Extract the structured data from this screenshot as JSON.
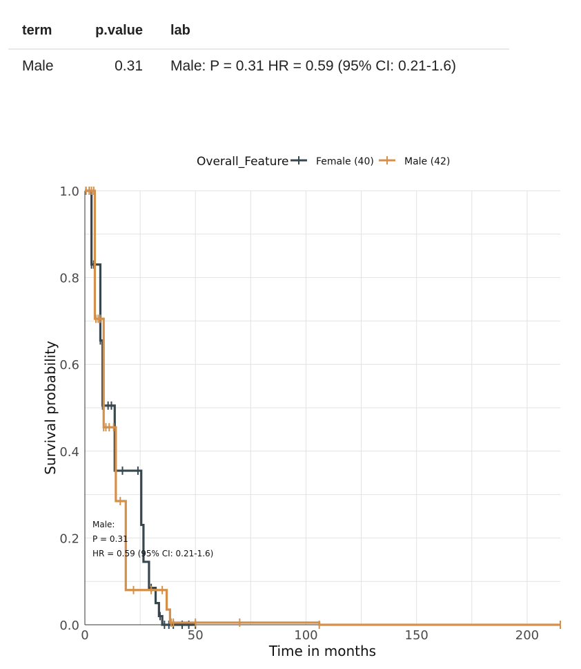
{
  "table": {
    "headers": [
      "term",
      "p.value",
      "lab"
    ],
    "rows": [
      {
        "term": "Male",
        "p_value": "0.31",
        "lab": "Male: P = 0.31 HR = 0.59 (95% CI: 0.21-1.6)"
      }
    ]
  },
  "chart_data": {
    "type": "line",
    "subtype": "kaplan-meier step",
    "xlabel": "Time in months",
    "ylabel": "Survival probability",
    "xlim": [
      0,
      215
    ],
    "ylim": [
      0,
      1
    ],
    "x_ticks": [
      0,
      50,
      100,
      150,
      200
    ],
    "y_ticks": [
      "0.0",
      "0.2",
      "0.4",
      "0.6",
      "0.8",
      "1.0"
    ],
    "grid": true,
    "legend": {
      "title": "Overall_Feature",
      "position": "top",
      "entries": [
        "Female (40)",
        "Male (42)"
      ]
    },
    "annotation": [
      "Male:",
      "P = 0.31",
      "HR = 0.59 (95% CI: 0.21-1.6)"
    ],
    "series": [
      {
        "name": "Female (40)",
        "color": "#37474f",
        "steps": [
          [
            0,
            1.0
          ],
          [
            3,
            0.83
          ],
          [
            7,
            0.655
          ],
          [
            8,
            0.505
          ],
          [
            13.5,
            0.355
          ],
          [
            25.5,
            0.23
          ],
          [
            26.5,
            0.145
          ],
          [
            29,
            0.085
          ],
          [
            32,
            0.05
          ],
          [
            33.5,
            0.02
          ],
          [
            35,
            0.0
          ],
          [
            50,
            0.0
          ]
        ],
        "censor_times": [
          0.5,
          2,
          3,
          4,
          7,
          8,
          10.5,
          12,
          17,
          24,
          30,
          34,
          36,
          38,
          40,
          44,
          47,
          50
        ]
      },
      {
        "name": "Male (42)",
        "color": "#d4904a",
        "steps": [
          [
            0,
            1.0
          ],
          [
            4.5,
            0.705
          ],
          [
            8.5,
            0.455
          ],
          [
            14,
            0.285
          ],
          [
            18.5,
            0.08
          ],
          [
            37,
            0.035
          ],
          [
            38.5,
            0.005
          ],
          [
            106,
            0.0
          ],
          [
            215,
            0.0
          ]
        ],
        "censor_times": [
          0.5,
          2,
          3,
          4,
          5,
          6,
          7,
          8.5,
          9.5,
          11,
          13,
          16,
          22,
          30,
          35,
          39,
          40,
          50,
          70,
          106,
          215
        ]
      }
    ]
  }
}
